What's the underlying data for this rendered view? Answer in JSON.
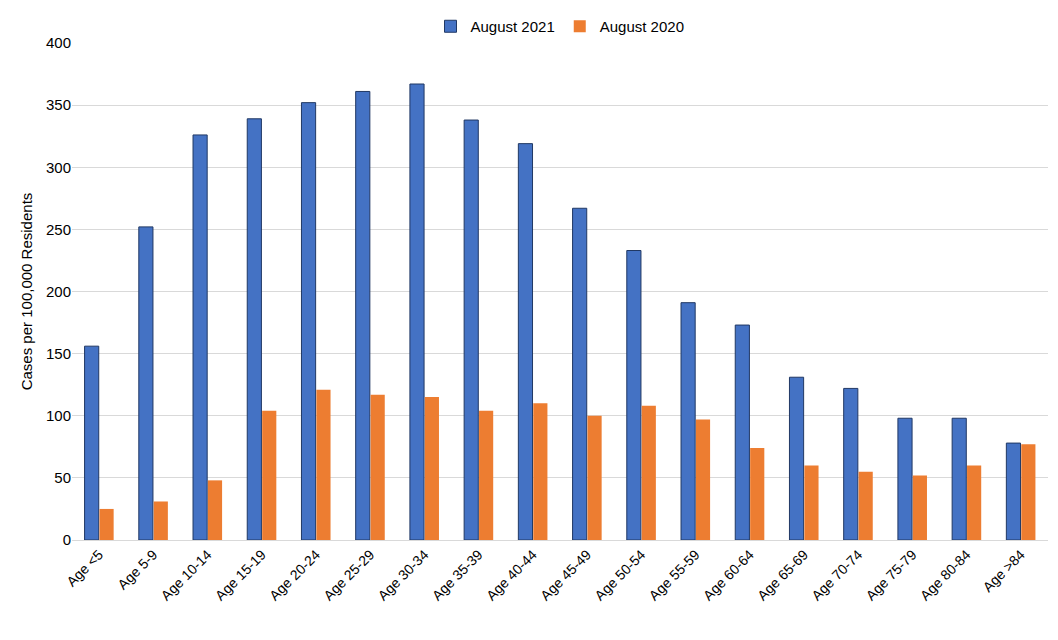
{
  "chart_data": {
    "type": "bar",
    "y_label": "Cases per 100,000 Residents",
    "categories": [
      "Age <5",
      "Age 5-9",
      "Age 10-14",
      "Age 15-19",
      "Age 20-24",
      "Age 25-29",
      "Age 30-34",
      "Age 35-39",
      "Age 40-44",
      "Age 45-49",
      "Age 50-54",
      "Age 55-59",
      "Age 60-64",
      "Age 65-69",
      "Age 70-74",
      "Age 75-79",
      "Age 80-84",
      "Age >84"
    ],
    "series": [
      {
        "name": "August 2021",
        "color": "#4472c4",
        "values": [
          156,
          252,
          326,
          339,
          352,
          361,
          367,
          338,
          319,
          267,
          233,
          191,
          173,
          131,
          122,
          98,
          98,
          78
        ]
      },
      {
        "name": "August 2020",
        "color": "#ed7d31",
        "values": [
          25,
          31,
          48,
          104,
          121,
          117,
          115,
          104,
          110,
          100,
          108,
          97,
          74,
          60,
          55,
          52,
          60,
          77
        ]
      }
    ],
    "ylim": [
      0,
      400
    ],
    "yticks": [
      0,
      50,
      100,
      150,
      200,
      250,
      300,
      350,
      400
    ],
    "grid": true,
    "legend": "top"
  }
}
